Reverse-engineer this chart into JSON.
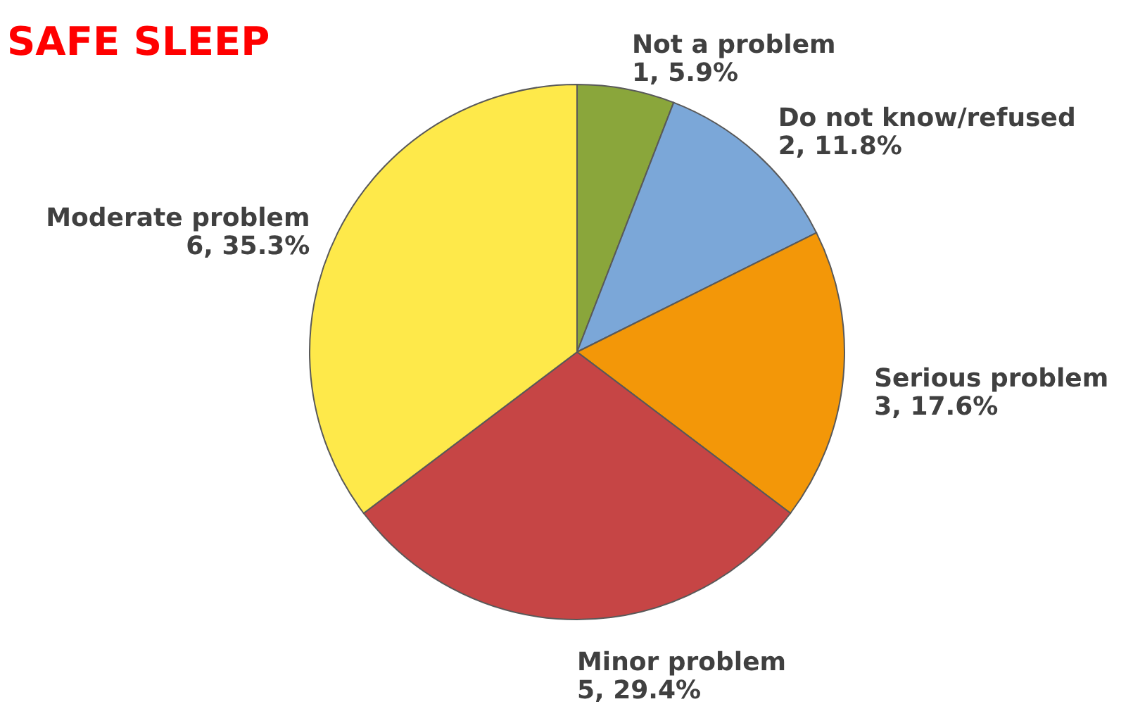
{
  "chart_data": {
    "type": "pie",
    "title": "SAFE SLEEP",
    "categories": [
      "Not a problem",
      "Do not know/refused",
      "Serious problem",
      "Minor problem",
      "Moderate problem"
    ],
    "values": [
      1,
      2,
      3,
      5,
      6
    ],
    "colors": [
      "#8aa63b",
      "#7ba7d8",
      "#f39708",
      "#c64545",
      "#fee94a"
    ],
    "value_labels": [
      "1, 5.9%",
      "2, 11.8%",
      "3, 17.6%",
      "5, 29.4%",
      "6, 35.3%"
    ]
  }
}
